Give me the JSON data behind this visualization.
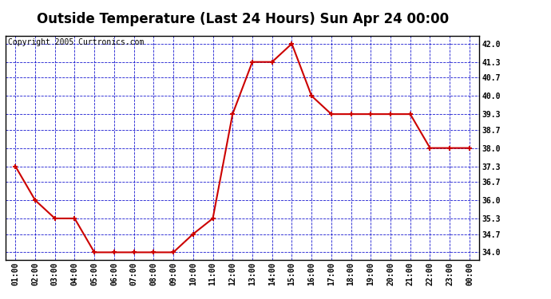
{
  "title": "Outside Temperature (Last 24 Hours) Sun Apr 24 00:00",
  "copyright": "Copyright 2005 Curtronics.com",
  "x_labels": [
    "01:00",
    "02:00",
    "03:00",
    "04:00",
    "05:00",
    "06:00",
    "07:00",
    "08:00",
    "09:00",
    "10:00",
    "11:00",
    "12:00",
    "13:00",
    "14:00",
    "15:00",
    "16:00",
    "17:00",
    "18:00",
    "19:00",
    "20:00",
    "21:00",
    "22:00",
    "23:00",
    "00:00"
  ],
  "x_values": [
    1,
    2,
    3,
    4,
    5,
    6,
    7,
    8,
    9,
    10,
    11,
    12,
    13,
    14,
    15,
    16,
    17,
    18,
    19,
    20,
    21,
    22,
    23,
    24
  ],
  "y_values": [
    37.3,
    36.0,
    35.3,
    35.3,
    34.0,
    34.0,
    34.0,
    34.0,
    34.0,
    34.7,
    35.3,
    39.3,
    41.3,
    41.3,
    42.0,
    40.0,
    39.3,
    39.3,
    39.3,
    39.3,
    39.3,
    38.0,
    38.0,
    38.0
  ],
  "y_ticks": [
    34.0,
    34.7,
    35.3,
    36.0,
    36.7,
    37.3,
    38.0,
    38.7,
    39.3,
    40.0,
    40.7,
    41.3,
    42.0
  ],
  "ylim": [
    33.7,
    42.3
  ],
  "xlim": [
    0.5,
    24.5
  ],
  "line_color": "#cc0000",
  "marker": "+",
  "marker_color": "#cc0000",
  "grid_color": "#0000cc",
  "bg_color": "#ffffff",
  "title_fontsize": 12,
  "copyright_fontsize": 7,
  "axes_label_fontsize": 7
}
